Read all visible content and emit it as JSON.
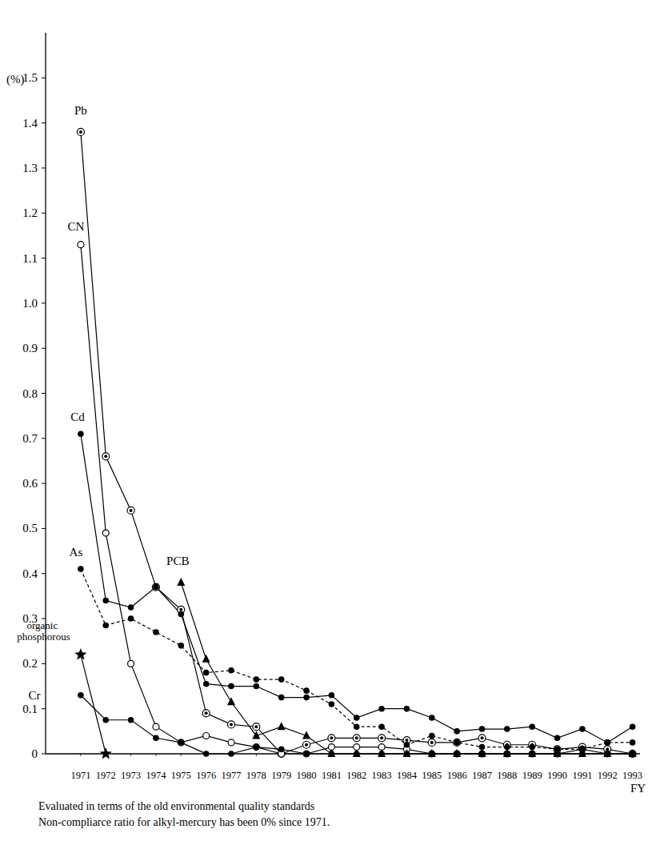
{
  "chart_data": {
    "type": "line",
    "y_label": "(%)",
    "x_label": "FY",
    "notes": [
      "Evaluated in terms of the old environmental quality standards",
      "Non-compliarce ratio for alkyl-mercury has been 0% since 1971."
    ],
    "x": [
      1971,
      1972,
      1973,
      1974,
      1975,
      1976,
      1977,
      1978,
      1979,
      1980,
      1981,
      1982,
      1983,
      1984,
      1985,
      1986,
      1987,
      1988,
      1989,
      1990,
      1991,
      1992,
      1993
    ],
    "xlim": [
      1969.6,
      1993.3
    ],
    "xticks": [
      1971,
      1972,
      1973,
      1974,
      1975,
      1976,
      1977,
      1978,
      1979,
      1980,
      1981,
      1982,
      1983,
      1984,
      1985,
      1986,
      1987,
      1988,
      1989,
      1990,
      1991,
      1992,
      1993
    ],
    "ylim": [
      0,
      1.6
    ],
    "yticks": [
      0,
      0.1,
      0.2,
      0.3,
      0.4,
      0.5,
      0.6,
      0.7,
      0.8,
      0.9,
      {
        "value": 1,
        "label": "1.0"
      },
      1.1,
      1.2,
      1.3,
      1.4,
      1.5
    ],
    "grid": false,
    "series": [
      {
        "name": "Pb",
        "color": "#000000",
        "marker": "circle-dot",
        "line_style": "solid",
        "values": [
          1.38,
          0.66,
          0.54,
          0.37,
          0.32,
          0.09,
          0.065,
          0.06,
          0.0,
          0.02,
          0.035,
          0.035,
          0.035,
          0.03,
          0.025,
          0.025,
          0.035,
          0.02,
          0.02,
          0.01,
          0.015,
          0.01,
          0.0
        ]
      },
      {
        "name": "CN",
        "color": "#000000",
        "marker": "open-circle",
        "line_style": "solid",
        "values": [
          1.13,
          0.49,
          0.2,
          0.06,
          0.025,
          0.04,
          0.025,
          0.015,
          0.0,
          0.0,
          0.015,
          0.015,
          0.015,
          0.01,
          0.0,
          0.0,
          0.0,
          0.0,
          0.0,
          0.0,
          0.01,
          0.0,
          0.0
        ]
      },
      {
        "name": "Cd",
        "color": "#000000",
        "marker": "filled-circle",
        "line_style": "solid",
        "values": [
          0.71,
          0.34,
          0.325,
          0.37,
          0.31,
          0.155,
          0.15,
          0.15,
          0.125,
          0.125,
          0.13,
          0.08,
          0.1,
          0.1,
          0.08,
          0.05,
          0.055,
          0.055,
          0.06,
          0.035,
          0.055,
          0.025,
          0.06
        ]
      },
      {
        "name": "As",
        "color": "#000000",
        "marker": "filled-circle",
        "line_style": "dashed",
        "values": [
          0.41,
          0.285,
          0.3,
          0.27,
          0.24,
          0.18,
          0.185,
          0.165,
          0.165,
          0.14,
          0.11,
          0.06,
          0.06,
          0.02,
          0.04,
          0.025,
          0.015,
          0.015,
          0.015,
          0.01,
          0.01,
          0.025,
          0.025
        ]
      },
      {
        "name": "PCB",
        "color": "#000000",
        "marker": "triangle",
        "line_style": "solid",
        "values": [
          null,
          null,
          null,
          null,
          0.38,
          0.21,
          0.115,
          0.04,
          0.06,
          0.04,
          0.0,
          0.0,
          0.0,
          0.0,
          0.0,
          0.0,
          0.0,
          0.0,
          0.0,
          0.0,
          0.0,
          0.0,
          0.0
        ]
      },
      {
        "name": "organic phosphorous",
        "color": "#000000",
        "marker": "star",
        "line_style": "solid",
        "values": [
          0.22,
          0.0,
          null,
          null,
          null,
          null,
          null,
          null,
          null,
          null,
          null,
          null,
          null,
          null,
          null,
          null,
          null,
          null,
          null,
          null,
          null,
          null,
          null
        ]
      },
      {
        "name": "Cr",
        "color": "#000000",
        "marker": "filled-circle",
        "line_style": "solid",
        "values": [
          0.13,
          0.075,
          0.075,
          0.035,
          0.025,
          0.0,
          0.0,
          0.015,
          0.01,
          0.0,
          0.0,
          0.0,
          0.0,
          0.0,
          0.0,
          0.0,
          0.0,
          0.0,
          0.0,
          0.0,
          0.0,
          0.0,
          0.0
        ]
      }
    ]
  }
}
